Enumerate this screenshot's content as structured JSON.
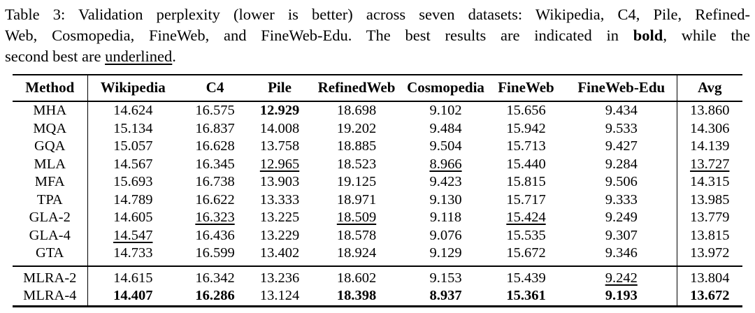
{
  "caption": {
    "lines": [
      {
        "justify": true,
        "segments": [
          {
            "text": "Table 3: Validation perplexity (lower is better) across seven datasets: Wikipedia, C4, Pile, Refined-",
            "style": ""
          }
        ]
      },
      {
        "justify": true,
        "segments": [
          {
            "text": "Web, Cosmopedia, FineWeb, and FineWeb-Edu. The best results are indicated in ",
            "style": ""
          },
          {
            "text": "bold",
            "style": "bold"
          },
          {
            "text": ", while the",
            "style": ""
          }
        ]
      },
      {
        "justify": false,
        "segments": [
          {
            "text": "second best are ",
            "style": ""
          },
          {
            "text": "underlined",
            "style": "underline"
          },
          {
            "text": ".",
            "style": ""
          }
        ]
      }
    ]
  },
  "table": {
    "columns": [
      "Method",
      "Wikipedia",
      "C4",
      "Pile",
      "RefinedWeb",
      "Cosmopedia",
      "FineWeb",
      "FineWeb-Edu",
      "Avg"
    ],
    "style_legend": {
      "b": "bold = best result",
      "u": "underline = second best"
    },
    "groups": [
      {
        "name": "baseline-methods",
        "rows": [
          {
            "method": "MHA",
            "cells": [
              {
                "v": "14.624",
                "s": ""
              },
              {
                "v": "16.575",
                "s": ""
              },
              {
                "v": "12.929",
                "s": "b"
              },
              {
                "v": "18.698",
                "s": ""
              },
              {
                "v": "9.102",
                "s": ""
              },
              {
                "v": "15.656",
                "s": ""
              },
              {
                "v": "9.434",
                "s": ""
              },
              {
                "v": "13.860",
                "s": ""
              }
            ]
          },
          {
            "method": "MQA",
            "cells": [
              {
                "v": "15.134",
                "s": ""
              },
              {
                "v": "16.837",
                "s": ""
              },
              {
                "v": "14.008",
                "s": ""
              },
              {
                "v": "19.202",
                "s": ""
              },
              {
                "v": "9.484",
                "s": ""
              },
              {
                "v": "15.942",
                "s": ""
              },
              {
                "v": "9.533",
                "s": ""
              },
              {
                "v": "14.306",
                "s": ""
              }
            ]
          },
          {
            "method": "GQA",
            "cells": [
              {
                "v": "15.057",
                "s": ""
              },
              {
                "v": "16.628",
                "s": ""
              },
              {
                "v": "13.758",
                "s": ""
              },
              {
                "v": "18.885",
                "s": ""
              },
              {
                "v": "9.504",
                "s": ""
              },
              {
                "v": "15.713",
                "s": ""
              },
              {
                "v": "9.427",
                "s": ""
              },
              {
                "v": "14.139",
                "s": ""
              }
            ]
          },
          {
            "method": "MLA",
            "cells": [
              {
                "v": "14.567",
                "s": ""
              },
              {
                "v": "16.345",
                "s": ""
              },
              {
                "v": "12.965",
                "s": "u"
              },
              {
                "v": "18.523",
                "s": ""
              },
              {
                "v": "8.966",
                "s": "u"
              },
              {
                "v": "15.440",
                "s": ""
              },
              {
                "v": "9.284",
                "s": ""
              },
              {
                "v": "13.727",
                "s": "u"
              }
            ]
          },
          {
            "method": "MFA",
            "cells": [
              {
                "v": "15.693",
                "s": ""
              },
              {
                "v": "16.738",
                "s": ""
              },
              {
                "v": "13.903",
                "s": ""
              },
              {
                "v": "19.125",
                "s": ""
              },
              {
                "v": "9.423",
                "s": ""
              },
              {
                "v": "15.815",
                "s": ""
              },
              {
                "v": "9.506",
                "s": ""
              },
              {
                "v": "14.315",
                "s": ""
              }
            ]
          },
          {
            "method": "TPA",
            "cells": [
              {
                "v": "14.789",
                "s": ""
              },
              {
                "v": "16.622",
                "s": ""
              },
              {
                "v": "13.333",
                "s": ""
              },
              {
                "v": "18.971",
                "s": ""
              },
              {
                "v": "9.130",
                "s": ""
              },
              {
                "v": "15.717",
                "s": ""
              },
              {
                "v": "9.333",
                "s": ""
              },
              {
                "v": "13.985",
                "s": ""
              }
            ]
          },
          {
            "method": "GLA-2",
            "cells": [
              {
                "v": "14.605",
                "s": ""
              },
              {
                "v": "16.323",
                "s": "u"
              },
              {
                "v": "13.225",
                "s": ""
              },
              {
                "v": "18.509",
                "s": "u"
              },
              {
                "v": "9.118",
                "s": ""
              },
              {
                "v": "15.424",
                "s": "u"
              },
              {
                "v": "9.249",
                "s": ""
              },
              {
                "v": "13.779",
                "s": ""
              }
            ]
          },
          {
            "method": "GLA-4",
            "cells": [
              {
                "v": "14.547",
                "s": "u"
              },
              {
                "v": "16.436",
                "s": ""
              },
              {
                "v": "13.229",
                "s": ""
              },
              {
                "v": "18.578",
                "s": ""
              },
              {
                "v": "9.076",
                "s": ""
              },
              {
                "v": "15.535",
                "s": ""
              },
              {
                "v": "9.307",
                "s": ""
              },
              {
                "v": "13.815",
                "s": ""
              }
            ]
          },
          {
            "method": "GTA",
            "cells": [
              {
                "v": "14.733",
                "s": ""
              },
              {
                "v": "16.599",
                "s": ""
              },
              {
                "v": "13.402",
                "s": ""
              },
              {
                "v": "18.924",
                "s": ""
              },
              {
                "v": "9.129",
                "s": ""
              },
              {
                "v": "15.672",
                "s": ""
              },
              {
                "v": "9.346",
                "s": ""
              },
              {
                "v": "13.972",
                "s": ""
              }
            ]
          }
        ]
      },
      {
        "name": "mlra-methods",
        "rows": [
          {
            "method": "MLRA-2",
            "cells": [
              {
                "v": "14.615",
                "s": ""
              },
              {
                "v": "16.342",
                "s": ""
              },
              {
                "v": "13.236",
                "s": ""
              },
              {
                "v": "18.602",
                "s": ""
              },
              {
                "v": "9.153",
                "s": ""
              },
              {
                "v": "15.439",
                "s": ""
              },
              {
                "v": "9.242",
                "s": "u"
              },
              {
                "v": "13.804",
                "s": ""
              }
            ]
          },
          {
            "method": "MLRA-4",
            "cells": [
              {
                "v": "14.407",
                "s": "b"
              },
              {
                "v": "16.286",
                "s": "b"
              },
              {
                "v": "13.124",
                "s": ""
              },
              {
                "v": "18.398",
                "s": "b"
              },
              {
                "v": "8.937",
                "s": "b"
              },
              {
                "v": "15.361",
                "s": "b"
              },
              {
                "v": "9.193",
                "s": "b"
              },
              {
                "v": "13.672",
                "s": "b"
              }
            ]
          }
        ]
      }
    ]
  },
  "colors": {
    "text": "#000000",
    "background": "#ffffff",
    "rule": "#000000"
  }
}
